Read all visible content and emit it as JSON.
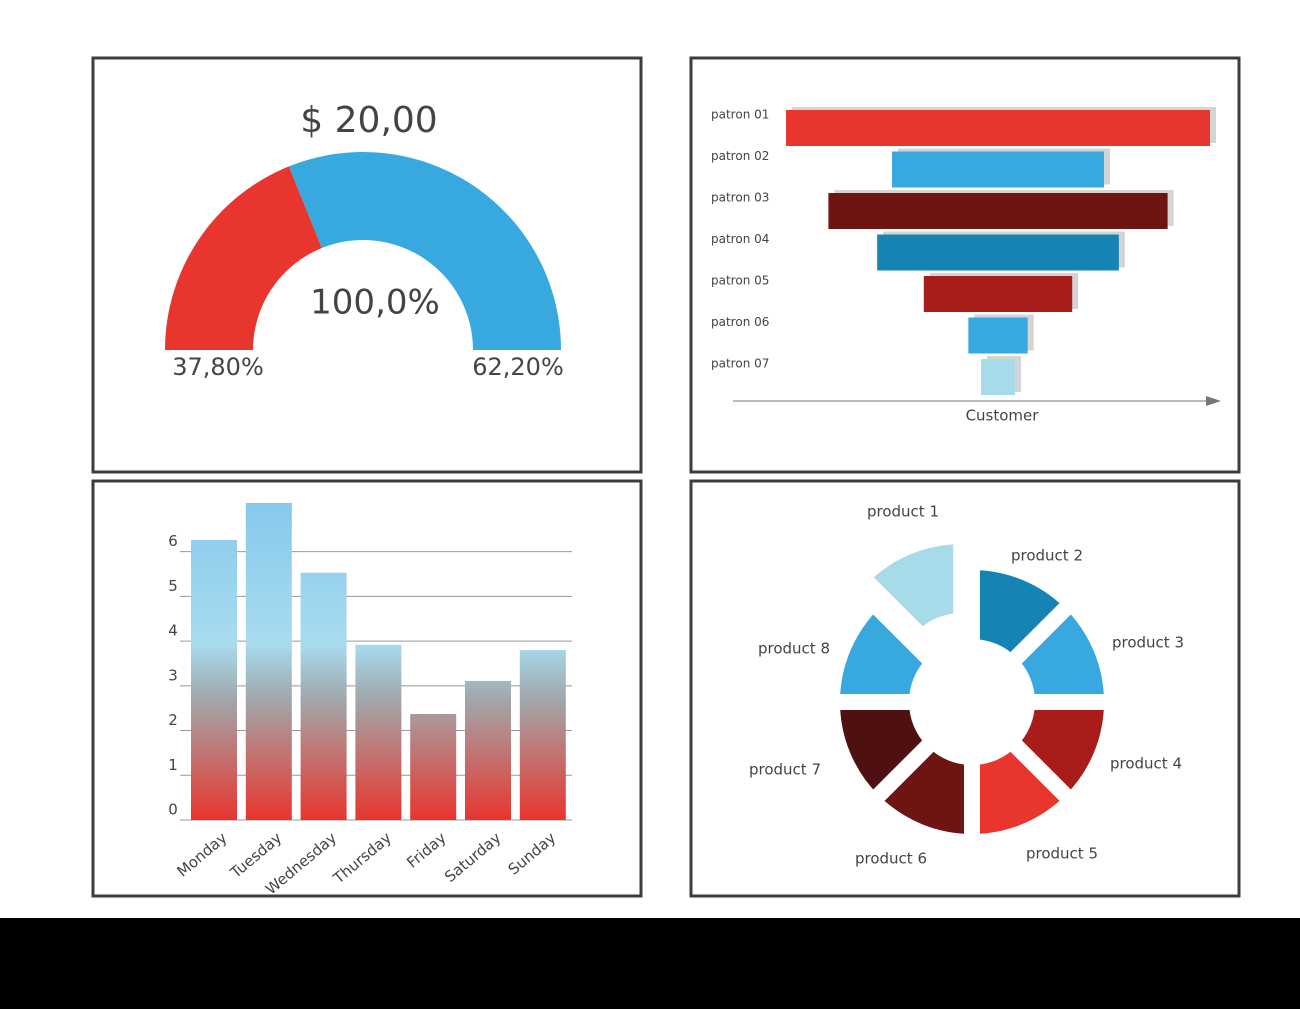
{
  "chart_data": [
    {
      "type": "gauge",
      "title": "$ 20,00",
      "center_label": "100,0%",
      "values": [
        37.8,
        62.2
      ],
      "value_labels": [
        "37,80%",
        "62,20%"
      ],
      "colors": [
        "#e8352e",
        "#37a9df"
      ]
    },
    {
      "type": "funnel",
      "categories": [
        "patron 01",
        "patron 02",
        "patron 03",
        "patron 04",
        "patron 05",
        "patron 06",
        "patron 07"
      ],
      "values": [
        100,
        50,
        80,
        57,
        35,
        14,
        8
      ],
      "colors": [
        "#e8352e",
        "#37a9df",
        "#6e1514",
        "#1584b5",
        "#a81c1a",
        "#37a9df",
        "#a8dbe9"
      ],
      "xlabel": "Customer"
    },
    {
      "type": "bar",
      "categories": [
        "Monday",
        "Tuesday",
        "Wednesday",
        "Thursday",
        "Friday",
        "Saturday",
        "Sunday"
      ],
      "values": [
        6.26,
        7.09,
        5.53,
        3.92,
        2.37,
        3.11,
        3.8
      ],
      "ylim": [
        0,
        7.2
      ],
      "yticks": [
        0,
        1,
        2,
        3,
        4,
        5,
        6
      ],
      "grid": true,
      "gradient": [
        "#86c9ec",
        "#a8dbef",
        "#a0a8ab",
        "#e8352e"
      ]
    },
    {
      "type": "pie",
      "donut": true,
      "categories": [
        "product 1",
        "product 2",
        "product 3",
        "product 4",
        "product 5",
        "product 6",
        "product 7",
        "product 8"
      ],
      "values": [
        12.5,
        12.5,
        12.5,
        12.5,
        12.5,
        12.5,
        12.5,
        12.5
      ],
      "colors": [
        "#a8dbe9",
        "#1584b5",
        "#37a9df",
        "#a81c1a",
        "#e8352e",
        "#6e1514",
        "#4e1010",
        "#37a9df"
      ]
    }
  ]
}
